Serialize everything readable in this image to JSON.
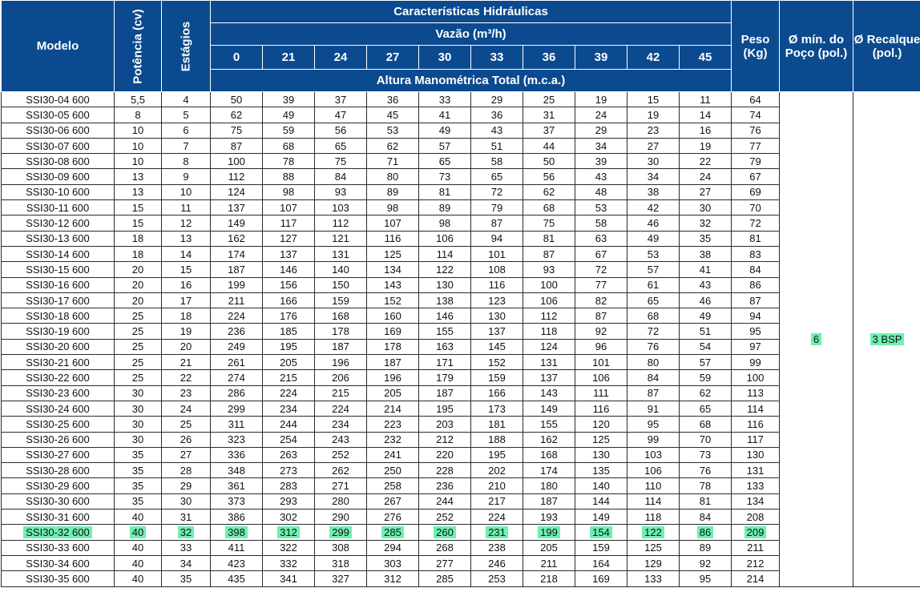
{
  "header": {
    "modelo": "Modelo",
    "potencia": "Potência (cv)",
    "estagios": "Estágios",
    "caracteristicas": "Características Hidráulicas",
    "vazao": "Vazão (m³/h)",
    "flows": [
      "0",
      "21",
      "24",
      "27",
      "30",
      "33",
      "36",
      "39",
      "42",
      "45"
    ],
    "altura": "Altura Manométrica Total (m.c.a.)",
    "peso": "Peso (Kg)",
    "poco": "Ø mín. do Poço (pol.)",
    "recalque": "Ø Recalque (pol.)"
  },
  "merged": {
    "poco_value": "6",
    "recalque_value": "3 BSP"
  },
  "highlight_color": "#6ef0b0",
  "highlight_row": 28,
  "rows": [
    [
      "SSI30-04 600",
      "5,5",
      "4",
      "50",
      "39",
      "37",
      "36",
      "33",
      "29",
      "25",
      "19",
      "15",
      "11",
      "64"
    ],
    [
      "SSI30-05 600",
      "8",
      "5",
      "62",
      "49",
      "47",
      "45",
      "41",
      "36",
      "31",
      "24",
      "19",
      "14",
      "74"
    ],
    [
      "SSI30-06 600",
      "10",
      "6",
      "75",
      "59",
      "56",
      "53",
      "49",
      "43",
      "37",
      "29",
      "23",
      "16",
      "76"
    ],
    [
      "SSI30-07 600",
      "10",
      "7",
      "87",
      "68",
      "65",
      "62",
      "57",
      "51",
      "44",
      "34",
      "27",
      "19",
      "77"
    ],
    [
      "SSI30-08 600",
      "10",
      "8",
      "100",
      "78",
      "75",
      "71",
      "65",
      "58",
      "50",
      "39",
      "30",
      "22",
      "79"
    ],
    [
      "SSI30-09 600",
      "13",
      "9",
      "112",
      "88",
      "84",
      "80",
      "73",
      "65",
      "56",
      "43",
      "34",
      "24",
      "67"
    ],
    [
      "SSI30-10 600",
      "13",
      "10",
      "124",
      "98",
      "93",
      "89",
      "81",
      "72",
      "62",
      "48",
      "38",
      "27",
      "69"
    ],
    [
      "SSI30-11 600",
      "15",
      "11",
      "137",
      "107",
      "103",
      "98",
      "89",
      "79",
      "68",
      "53",
      "42",
      "30",
      "70"
    ],
    [
      "SSI30-12 600",
      "15",
      "12",
      "149",
      "117",
      "112",
      "107",
      "98",
      "87",
      "75",
      "58",
      "46",
      "32",
      "72"
    ],
    [
      "SSI30-13 600",
      "18",
      "13",
      "162",
      "127",
      "121",
      "116",
      "106",
      "94",
      "81",
      "63",
      "49",
      "35",
      "81"
    ],
    [
      "SSI30-14 600",
      "18",
      "14",
      "174",
      "137",
      "131",
      "125",
      "114",
      "101",
      "87",
      "67",
      "53",
      "38",
      "83"
    ],
    [
      "SSI30-15 600",
      "20",
      "15",
      "187",
      "146",
      "140",
      "134",
      "122",
      "108",
      "93",
      "72",
      "57",
      "41",
      "84"
    ],
    [
      "SSI30-16 600",
      "20",
      "16",
      "199",
      "156",
      "150",
      "143",
      "130",
      "116",
      "100",
      "77",
      "61",
      "43",
      "86"
    ],
    [
      "SSI30-17 600",
      "20",
      "17",
      "211",
      "166",
      "159",
      "152",
      "138",
      "123",
      "106",
      "82",
      "65",
      "46",
      "87"
    ],
    [
      "SSI30-18 600",
      "25",
      "18",
      "224",
      "176",
      "168",
      "160",
      "146",
      "130",
      "112",
      "87",
      "68",
      "49",
      "94"
    ],
    [
      "SSI30-19 600",
      "25",
      "19",
      "236",
      "185",
      "178",
      "169",
      "155",
      "137",
      "118",
      "92",
      "72",
      "51",
      "95"
    ],
    [
      "SSI30-20 600",
      "25",
      "20",
      "249",
      "195",
      "187",
      "178",
      "163",
      "145",
      "124",
      "96",
      "76",
      "54",
      "97"
    ],
    [
      "SSI30-21 600",
      "25",
      "21",
      "261",
      "205",
      "196",
      "187",
      "171",
      "152",
      "131",
      "101",
      "80",
      "57",
      "99"
    ],
    [
      "SSI30-22 600",
      "25",
      "22",
      "274",
      "215",
      "206",
      "196",
      "179",
      "159",
      "137",
      "106",
      "84",
      "59",
      "100"
    ],
    [
      "SSI30-23 600",
      "30",
      "23",
      "286",
      "224",
      "215",
      "205",
      "187",
      "166",
      "143",
      "111",
      "87",
      "62",
      "113"
    ],
    [
      "SSI30-24 600",
      "30",
      "24",
      "299",
      "234",
      "224",
      "214",
      "195",
      "173",
      "149",
      "116",
      "91",
      "65",
      "114"
    ],
    [
      "SSI30-25 600",
      "30",
      "25",
      "311",
      "244",
      "234",
      "223",
      "203",
      "181",
      "155",
      "120",
      "95",
      "68",
      "116"
    ],
    [
      "SSI30-26 600",
      "30",
      "26",
      "323",
      "254",
      "243",
      "232",
      "212",
      "188",
      "162",
      "125",
      "99",
      "70",
      "117"
    ],
    [
      "SSI30-27 600",
      "35",
      "27",
      "336",
      "263",
      "252",
      "241",
      "220",
      "195",
      "168",
      "130",
      "103",
      "73",
      "130"
    ],
    [
      "SSI30-28 600",
      "35",
      "28",
      "348",
      "273",
      "262",
      "250",
      "228",
      "202",
      "174",
      "135",
      "106",
      "76",
      "131"
    ],
    [
      "SSI30-29 600",
      "35",
      "29",
      "361",
      "283",
      "271",
      "258",
      "236",
      "210",
      "180",
      "140",
      "110",
      "78",
      "133"
    ],
    [
      "SSI30-30 600",
      "35",
      "30",
      "373",
      "293",
      "280",
      "267",
      "244",
      "217",
      "187",
      "144",
      "114",
      "81",
      "134"
    ],
    [
      "SSI30-31 600",
      "40",
      "31",
      "386",
      "302",
      "290",
      "276",
      "252",
      "224",
      "193",
      "149",
      "118",
      "84",
      "208"
    ],
    [
      "SSI30-32 600",
      "40",
      "32",
      "398",
      "312",
      "299",
      "285",
      "260",
      "231",
      "199",
      "154",
      "122",
      "86",
      "209"
    ],
    [
      "SSI30-33 600",
      "40",
      "33",
      "411",
      "322",
      "308",
      "294",
      "268",
      "238",
      "205",
      "159",
      "125",
      "89",
      "211"
    ],
    [
      "SSI30-34 600",
      "40",
      "34",
      "423",
      "332",
      "318",
      "303",
      "277",
      "246",
      "211",
      "164",
      "129",
      "92",
      "212"
    ],
    [
      "SSI30-35 600",
      "40",
      "35",
      "435",
      "341",
      "327",
      "312",
      "285",
      "253",
      "218",
      "169",
      "133",
      "95",
      "214"
    ]
  ]
}
